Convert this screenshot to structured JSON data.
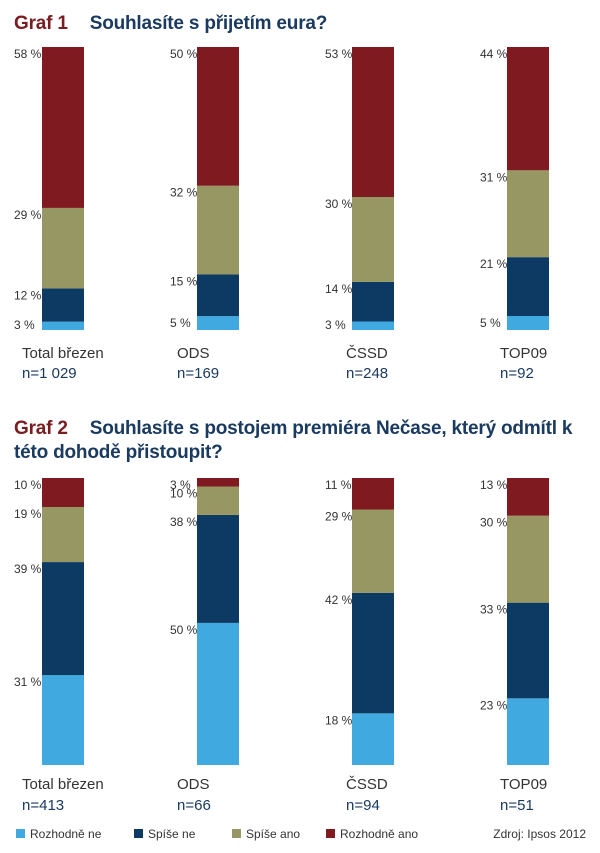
{
  "chart_data": [
    {
      "type": "bar",
      "stacked": true,
      "label": "Graf 1",
      "title": "Souhlasíte s přijetím eura?",
      "categories": [
        "Total březen",
        "ODS",
        "ČSSD",
        "TOP09"
      ],
      "sample_sizes": [
        "n=1 029",
        "n=169",
        "n=248",
        "n=92"
      ],
      "series": [
        {
          "name": "Rozhodně ne",
          "values": [
            3,
            5,
            3,
            5
          ]
        },
        {
          "name": "Spíše ne",
          "values": [
            12,
            15,
            14,
            21
          ]
        },
        {
          "name": "Spíše ano",
          "values": [
            29,
            32,
            30,
            31
          ]
        },
        {
          "name": "Rozhodně ano",
          "values": [
            58,
            50,
            53,
            44
          ]
        }
      ],
      "legend_position": "bottom",
      "grid": false
    },
    {
      "type": "bar",
      "stacked": true,
      "label": "Graf 2",
      "title": "Souhlasíte s postojem premiéra Nečase, který odmítl k této dohodě přistoupit?",
      "categories": [
        "Total březen",
        "ODS",
        "ČSSD",
        "TOP09"
      ],
      "sample_sizes": [
        "n=413",
        "n=66",
        "n=94",
        "n=51"
      ],
      "series": [
        {
          "name": "Rozhodně ne",
          "values": [
            31,
            50,
            18,
            23
          ]
        },
        {
          "name": "Spíše ne",
          "values": [
            39,
            38,
            42,
            33
          ]
        },
        {
          "name": "Spíše ano",
          "values": [
            19,
            10,
            29,
            30
          ]
        },
        {
          "name": "Rozhodně ano",
          "values": [
            10,
            3,
            11,
            13
          ]
        }
      ],
      "legend_position": "bottom",
      "grid": false
    }
  ],
  "legend": {
    "items": [
      "Rozhodně ne",
      "Spíše ne",
      "Spíše ano",
      "Rozhodně ano"
    ],
    "colors": [
      "#3fa9e0",
      "#0d3a63",
      "#979763",
      "#7e1a20"
    ]
  },
  "source": "Zdroj: Ipsos 2012",
  "percent_suffix": " %"
}
